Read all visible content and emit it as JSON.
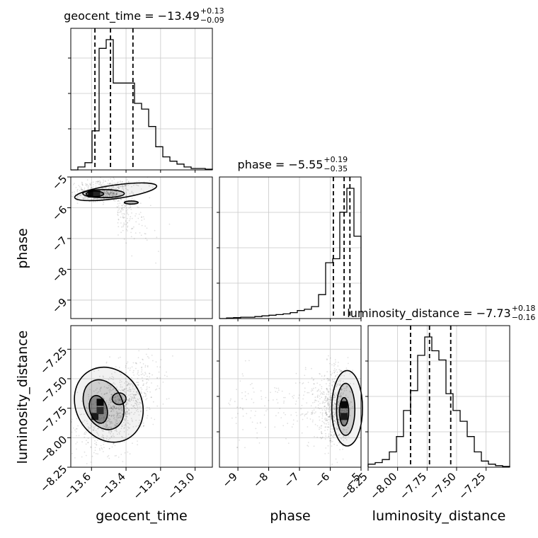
{
  "chart_data": {
    "type": "corner",
    "parameters": [
      "geocent_time",
      "phase",
      "luminosity_distance"
    ],
    "panel_titles": [
      {
        "param": "geocent_time",
        "prefix": "geocent_time = ",
        "median": "−13.49",
        "plus": "+0.13",
        "minus": "−0.09"
      },
      {
        "param": "phase",
        "prefix": "phase = ",
        "median": "−5.55",
        "plus": "+0.19",
        "minus": "−0.35"
      },
      {
        "param": "luminosity_distance",
        "prefix": "luminosity_distance = ",
        "median": "−7.73",
        "plus": "+0.18",
        "minus": "−0.16"
      }
    ],
    "axes": {
      "geocent_time": {
        "range": [
          -13.72,
          -12.9
        ],
        "ticks": [
          -13.6,
          -13.4,
          -13.2,
          -13.0
        ],
        "tick_labels": [
          "−13.6",
          "−13.4",
          "−13.2",
          "−13.0"
        ]
      },
      "phase": {
        "range": [
          -9.6,
          -5.0
        ],
        "ticks": [
          -9,
          -8,
          -7,
          -6,
          -5
        ],
        "tick_labels": [
          "−9",
          "−8",
          "−7",
          "−6",
          "−5"
        ]
      },
      "luminosity_distance": {
        "range": [
          -8.25,
          -7.05
        ],
        "ticks": [
          -8.25,
          -8.0,
          -7.75,
          -7.5,
          -7.25
        ],
        "tick_labels": [
          "−8.25",
          "−8.00",
          "−7.75",
          "−7.50",
          "−7.25"
        ]
      }
    },
    "quantiles": {
      "geocent_time": [
        -13.58,
        -13.49,
        -13.36
      ],
      "phase": [
        -5.9,
        -5.55,
        -5.36
      ],
      "luminosity_distance": [
        -7.89,
        -7.73,
        -7.55
      ]
    },
    "histograms": {
      "geocent_time": {
        "edges_start": -13.72,
        "bin_width": 0.041,
        "counts": [
          0,
          0.02,
          0.05,
          0.27,
          0.84,
          0.9,
          0.6,
          0.6,
          0.6,
          0.46,
          0.42,
          0.3,
          0.16,
          0.09,
          0.06,
          0.04,
          0.02,
          0.01,
          0.01,
          0.005
        ]
      },
      "phase": {
        "edges_start": -9.6,
        "bin_width": 0.23,
        "counts": [
          0,
          0.005,
          0.007,
          0.01,
          0.01,
          0.015,
          0.02,
          0.025,
          0.03,
          0.035,
          0.045,
          0.06,
          0.07,
          0.09,
          0.18,
          0.42,
          0.45,
          0.8,
          0.98,
          0.62
        ]
      },
      "luminosity_distance": {
        "edges_start": -8.25,
        "bin_width": 0.06,
        "counts": [
          0.02,
          0.03,
          0.05,
          0.1,
          0.2,
          0.37,
          0.5,
          0.73,
          0.85,
          0.76,
          0.7,
          0.48,
          0.37,
          0.3,
          0.2,
          0.1,
          0.04,
          0.02,
          0.01,
          0.005
        ]
      }
    },
    "axis_labels": [
      "geocent_time",
      "phase",
      "luminosity_distance"
    ],
    "grid": true
  }
}
